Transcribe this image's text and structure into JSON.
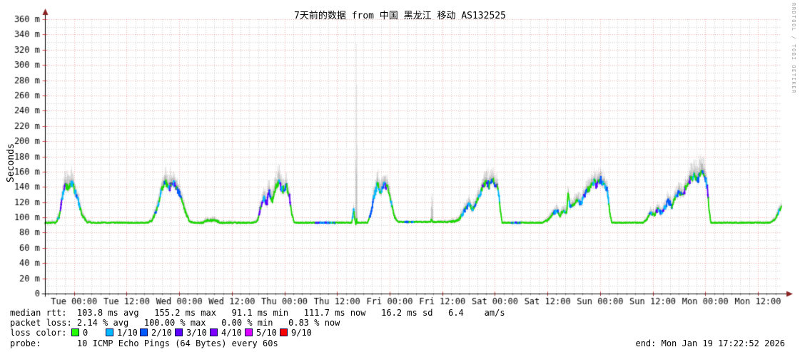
{
  "title": "7天前的数据 from 中国 黑龙江 移动 AS132525",
  "y_axis_title": "Seconds",
  "watermark": "RRDTOOL / TOBI OETIKER",
  "footer": {
    "median_line": "median rtt:  103.8 ms avg   155.2 ms max   91.1 ms min   111.7 ms now   16.2 ms sd   6.4    am/s",
    "loss_line": "packet loss: 2.14 % avg   100.00 % max   0.00 % min   0.83 % now",
    "loss_color_label": "loss color:",
    "legend": [
      {
        "label": "0",
        "color": "#26ff00"
      },
      {
        "label": "1/10",
        "color": "#00b8ff"
      },
      {
        "label": "2/10",
        "color": "#0059ff"
      },
      {
        "label": "3/10",
        "color": "#5e00ff"
      },
      {
        "label": "4/10",
        "color": "#7e00ff"
      },
      {
        "label": "5/10",
        "color": "#dd00ff"
      },
      {
        "label": "9/10",
        "color": "#ff0000"
      }
    ],
    "probe_line": "probe:       10 ICMP Echo Pings (64 Bytes) every 60s",
    "end_line": "end: Mon Jan 19 17:22:52 2026"
  },
  "chart_data": {
    "type": "line",
    "title": "7天前的数据 from 中国 黑龙江 移动 AS132525",
    "ylabel": "Seconds",
    "y_tick_suffix": " m",
    "ylim": [
      0,
      360
    ],
    "y_major_step": 20,
    "y_minor_step": 10,
    "x_hours_span": 168,
    "x_minor_step_hours": 2,
    "x_major_ticks": [
      {
        "t_hours": 6.63,
        "label": "Tue 00:00"
      },
      {
        "t_hours": 18.63,
        "label": "Tue 12:00"
      },
      {
        "t_hours": 30.63,
        "label": "Wed 00:00"
      },
      {
        "t_hours": 42.63,
        "label": "Wed 12:00"
      },
      {
        "t_hours": 54.63,
        "label": "Thu 00:00"
      },
      {
        "t_hours": 66.63,
        "label": "Thu 12:00"
      },
      {
        "t_hours": 78.63,
        "label": "Fri 00:00"
      },
      {
        "t_hours": 90.63,
        "label": "Fri 12:00"
      },
      {
        "t_hours": 102.63,
        "label": "Sat 00:00"
      },
      {
        "t_hours": 114.63,
        "label": "Sat 12:00"
      },
      {
        "t_hours": 126.63,
        "label": "Sun 00:00"
      },
      {
        "t_hours": 138.63,
        "label": "Sun 12:00"
      },
      {
        "t_hours": 150.63,
        "label": "Mon 00:00"
      },
      {
        "t_hours": 162.63,
        "label": "Mon 12:00"
      }
    ],
    "stats": {
      "median_rtt_ms": {
        "avg": 103.8,
        "max": 155.2,
        "min": 91.1,
        "now": 111.7,
        "sd": 16.2,
        "am_s": 6.4
      },
      "packet_loss_pct": {
        "avg": 2.14,
        "max": 100.0,
        "min": 0.0,
        "now": 0.83
      }
    },
    "probe": "10 ICMP Echo Pings (64 Bytes) every 60s",
    "end": "Mon Jan 19 17:22:52 2026",
    "loss_colors": {
      "0": "#26ff00",
      "1/10": "#00b8ff",
      "2/10": "#0059ff",
      "3/10": "#5e00ff",
      "4/10": "#7e00ff",
      "5/10": "#dd00ff",
      "9/10": "#ff0000"
    },
    "grid": {
      "major_color": "rgba(235,60,60,0.45)",
      "minor_color": "rgba(0,0,0,0.20)"
    },
    "smoke_outer": "rgba(90,90,90,0.16)",
    "smoke_inner": "rgba(70,70,70,0.14)",
    "arrow_color": "#8b2323",
    "series": [
      {
        "name": "median rtt (ms); anchors are [t_hours_from_start, median_ms, smoke_height_ms, loss_level]",
        "color": "#1bd800",
        "anchors": [
          [
            0,
            93,
            3,
            0
          ],
          [
            2.5,
            93,
            3,
            0
          ],
          [
            3.2,
            101,
            8,
            1
          ],
          [
            4,
            128,
            14,
            1
          ],
          [
            4.6,
            143,
            16,
            1
          ],
          [
            5.4,
            137,
            18,
            1
          ],
          [
            6.2,
            144,
            16,
            1
          ],
          [
            7,
            131,
            14,
            1
          ],
          [
            7.7,
            119,
            12,
            1
          ],
          [
            8.4,
            104,
            8,
            0
          ],
          [
            9.5,
            94,
            4,
            0
          ],
          [
            11,
            93,
            2,
            0
          ],
          [
            23.5,
            93,
            2,
            0
          ],
          [
            24.6,
            97,
            6,
            0
          ],
          [
            25.6,
            113,
            10,
            1
          ],
          [
            26.6,
            136,
            14,
            1
          ],
          [
            27.4,
            146,
            16,
            1
          ],
          [
            28.4,
            139,
            18,
            1
          ],
          [
            29.2,
            147,
            16,
            1
          ],
          [
            30.2,
            137,
            14,
            1
          ],
          [
            31.2,
            124,
            12,
            1
          ],
          [
            32,
            107,
            8,
            0
          ],
          [
            33,
            95,
            4,
            0
          ],
          [
            33.8,
            93,
            2,
            0
          ],
          [
            36,
            93,
            3,
            0
          ],
          [
            37,
            96,
            5,
            0
          ],
          [
            39,
            96,
            5,
            0
          ],
          [
            40,
            93,
            3,
            0
          ],
          [
            47.5,
            93,
            2,
            0
          ],
          [
            48.5,
            96,
            5,
            0
          ],
          [
            49.2,
            113,
            10,
            1
          ],
          [
            49.9,
            126,
            12,
            1
          ],
          [
            50.5,
            117,
            14,
            1
          ],
          [
            51.2,
            133,
            16,
            1
          ],
          [
            51.9,
            121,
            14,
            1
          ],
          [
            52.6,
            140,
            16,
            1
          ],
          [
            53.4,
            146,
            18,
            1
          ],
          [
            54.2,
            135,
            16,
            1
          ],
          [
            55,
            142,
            14,
            1
          ],
          [
            55.8,
            127,
            12,
            1
          ],
          [
            56.3,
            104,
            7,
            0
          ],
          [
            56.9,
            93,
            2,
            0
          ],
          [
            65.5,
            93,
            2,
            1
          ],
          [
            67,
            93,
            2,
            0
          ],
          [
            70,
            93,
            2,
            0
          ],
          [
            70.4,
            110,
            9,
            2
          ],
          [
            70.8,
            94,
            3,
            0
          ],
          [
            71,
            95,
            250,
            0
          ],
          [
            71.3,
            93,
            2,
            0
          ],
          [
            73.6,
            93,
            2,
            0
          ],
          [
            74.4,
            106,
            8,
            1
          ],
          [
            75.2,
            131,
            14,
            1
          ],
          [
            75.9,
            143,
            16,
            1
          ],
          [
            76.6,
            135,
            18,
            1
          ],
          [
            77.4,
            145,
            16,
            1
          ],
          [
            78.2,
            137,
            14,
            1
          ],
          [
            79,
            119,
            10,
            1
          ],
          [
            79.8,
            100,
            6,
            0
          ],
          [
            80.6,
            94,
            2,
            0
          ],
          [
            83.5,
            94,
            2,
            1
          ],
          [
            85,
            94,
            2,
            0
          ],
          [
            88,
            94,
            2,
            0
          ],
          [
            88.3,
            95,
            45,
            0
          ],
          [
            88.6,
            94,
            2,
            0
          ],
          [
            92,
            94,
            3,
            0
          ],
          [
            93.5,
            95,
            4,
            0
          ],
          [
            94.5,
            98,
            6,
            0
          ],
          [
            95.2,
            104,
            8,
            1
          ],
          [
            96,
            112,
            9,
            1
          ],
          [
            96.8,
            118,
            10,
            1
          ],
          [
            97.4,
            108,
            9,
            1
          ],
          [
            98.2,
            119,
            10,
            1
          ],
          [
            99,
            128,
            12,
            1
          ],
          [
            99.8,
            139,
            14,
            1
          ],
          [
            100.6,
            146,
            15,
            1
          ],
          [
            101.4,
            142,
            16,
            1
          ],
          [
            102.2,
            148,
            15,
            1
          ],
          [
            102.9,
            143,
            14,
            1
          ],
          [
            103.5,
            131,
            12,
            1
          ],
          [
            103.9,
            108,
            7,
            0
          ],
          [
            104.3,
            93,
            2,
            0
          ],
          [
            108.5,
            93,
            2,
            1
          ],
          [
            109.5,
            93,
            2,
            0
          ],
          [
            113.5,
            93,
            2,
            0
          ],
          [
            114.8,
            97,
            5,
            0
          ],
          [
            115.8,
            104,
            7,
            1
          ],
          [
            116.8,
            109,
            8,
            1
          ],
          [
            117.5,
            102,
            7,
            0
          ],
          [
            118.3,
            110,
            9,
            1
          ],
          [
            119,
            107,
            8,
            1
          ],
          [
            119.35,
            133,
            12,
            1
          ],
          [
            119.8,
            112,
            9,
            1
          ],
          [
            120.6,
            117,
            10,
            1
          ],
          [
            121.4,
            123,
            11,
            1
          ],
          [
            122.2,
            118,
            10,
            1
          ],
          [
            123.2,
            129,
            12,
            1
          ],
          [
            124.2,
            139,
            14,
            1
          ],
          [
            125.2,
            146,
            15,
            1
          ],
          [
            126,
            142,
            16,
            1
          ],
          [
            126.8,
            149,
            15,
            1
          ],
          [
            127.6,
            144,
            14,
            1
          ],
          [
            128.3,
            135,
            12,
            1
          ],
          [
            128.9,
            104,
            6,
            0
          ],
          [
            129.3,
            93,
            2,
            0
          ],
          [
            136.5,
            93,
            2,
            0
          ],
          [
            137.4,
            98,
            5,
            0
          ],
          [
            138.2,
            107,
            8,
            1
          ],
          [
            139,
            101,
            7,
            0
          ],
          [
            139.8,
            111,
            9,
            1
          ],
          [
            140.6,
            105,
            8,
            1
          ],
          [
            141.4,
            113,
            10,
            1
          ],
          [
            142.2,
            121,
            11,
            1
          ],
          [
            143,
            115,
            10,
            1
          ],
          [
            143.8,
            127,
            12,
            1
          ],
          [
            144.6,
            134,
            13,
            1
          ],
          [
            145.4,
            128,
            12,
            1
          ],
          [
            146.2,
            139,
            14,
            1
          ],
          [
            147.2,
            149,
            16,
            1
          ],
          [
            148.2,
            155,
            20,
            1
          ],
          [
            149,
            151,
            22,
            1
          ],
          [
            149.8,
            158,
            22,
            1
          ],
          [
            150.6,
            152,
            18,
            1
          ],
          [
            151.1,
            139,
            13,
            1
          ],
          [
            151.5,
            110,
            7,
            0
          ],
          [
            151.9,
            93,
            2,
            0
          ],
          [
            160,
            93,
            2,
            0
          ],
          [
            165.5,
            93,
            2,
            0
          ],
          [
            166.4,
            97,
            4,
            0
          ],
          [
            167.3,
            106,
            7,
            1
          ],
          [
            168,
            114,
            8,
            0
          ]
        ]
      }
    ]
  }
}
